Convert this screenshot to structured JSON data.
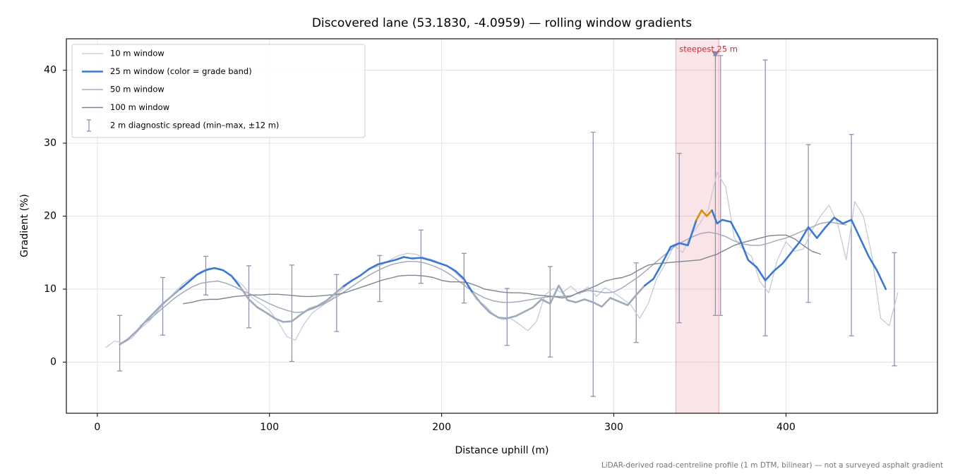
{
  "chart_data": {
    "type": "line",
    "title": "Discovered lane (53.1830, -4.0959) — rolling window gradients",
    "x_label": "Distance uphill (m)",
    "y_label": "Gradient (%)",
    "footnote": "LiDAR-derived road-centreline profile (1 m DTM, bilinear) — not a surveyed asphalt gradient",
    "xlim": [
      -18,
      488
    ],
    "ylim": [
      -7,
      44.3
    ],
    "xticks": [
      0,
      100,
      200,
      300,
      400
    ],
    "yticks": [
      0,
      10,
      20,
      30,
      40
    ],
    "grid": true,
    "legend": "upper left",
    "series": [
      {
        "name": "10 m window",
        "color": "#c5cad6",
        "width": 1.3,
        "x": [
          5,
          10,
          15,
          20,
          25,
          30,
          35,
          40,
          45,
          50,
          55,
          60,
          65,
          70,
          75,
          80,
          85,
          90,
          95,
          100,
          105,
          110,
          115,
          120,
          125,
          130,
          135,
          140,
          145,
          150,
          155,
          160,
          165,
          170,
          175,
          180,
          185,
          190,
          195,
          200,
          205,
          210,
          215,
          220,
          225,
          230,
          235,
          240,
          245,
          250,
          255,
          260,
          265,
          270,
          275,
          280,
          285,
          290,
          295,
          300,
          305,
          310,
          315,
          320,
          325,
          330,
          335,
          340,
          345,
          350,
          355,
          360,
          365,
          370,
          375,
          380,
          385,
          390,
          395,
          400,
          405,
          410,
          415,
          420,
          425,
          430,
          435,
          440,
          445,
          450,
          455,
          460,
          465
        ],
        "values": [
          2.0,
          2.9,
          2.6,
          3.3,
          4.6,
          5.6,
          7.0,
          8.3,
          9.6,
          10.8,
          11.6,
          12.4,
          12.9,
          12.7,
          12.4,
          11.4,
          10.4,
          8.8,
          8.0,
          7.1,
          5.5,
          3.5,
          3.0,
          5.2,
          6.8,
          7.6,
          8.5,
          9.4,
          10.6,
          11.4,
          12.3,
          12.9,
          13.3,
          14.0,
          14.6,
          14.9,
          14.8,
          14.3,
          14.0,
          13.5,
          12.9,
          11.8,
          10.7,
          8.6,
          7.8,
          6.6,
          5.8,
          6.0,
          5.2,
          4.3,
          5.5,
          9.2,
          10.1,
          9.5,
          10.4,
          9.3,
          10.3,
          9.0,
          10.2,
          9.5,
          8.7,
          7.8,
          6.0,
          8.0,
          11.5,
          13.5,
          16.0,
          15.0,
          17.5,
          19.0,
          21.0,
          26.0,
          24.0,
          17.0,
          15.5,
          14.5,
          11.0,
          9.5,
          14.0,
          16.5,
          15.2,
          15.5,
          18.0,
          20.0,
          21.5,
          19.0,
          14.0,
          22.0,
          20.0,
          14.5,
          6.0,
          5.0,
          9.5
        ]
      },
      {
        "name": "25 m window (color = grade band)",
        "color": "#3b78d4",
        "width": 2.6,
        "band_edges": [
          10,
          20
        ],
        "band_colors": [
          "#9eaabc",
          "#3b78d4",
          "#e08a0b"
        ],
        "x": [
          13,
          18,
          23,
          28,
          33,
          38,
          43,
          48,
          53,
          58,
          63,
          68,
          73,
          78,
          83,
          88,
          93,
          98,
          103,
          108,
          113,
          118,
          123,
          128,
          133,
          138,
          143,
          148,
          153,
          158,
          163,
          168,
          173,
          178,
          183,
          188,
          193,
          198,
          203,
          208,
          213,
          218,
          223,
          228,
          233,
          238,
          243,
          248,
          253,
          258,
          263,
          268,
          273,
          278,
          283,
          288,
          293,
          298,
          303,
          308,
          313,
          318,
          323,
          328,
          333,
          338,
          343,
          348,
          351,
          354,
          357,
          360,
          363,
          368,
          373,
          378,
          383,
          388,
          393,
          398,
          403,
          408,
          413,
          418,
          423,
          428,
          433,
          438,
          443,
          448,
          453,
          458
        ],
        "values": [
          2.4,
          3.2,
          4.3,
          5.6,
          6.8,
          8.0,
          9.0,
          10.0,
          11.0,
          12.0,
          12.6,
          12.9,
          12.6,
          11.8,
          10.3,
          8.6,
          7.5,
          6.8,
          6.0,
          5.5,
          5.6,
          6.5,
          7.3,
          7.7,
          8.4,
          9.4,
          10.4,
          11.2,
          11.9,
          12.8,
          13.4,
          13.7,
          14.0,
          14.4,
          14.2,
          14.3,
          14.0,
          13.6,
          13.2,
          12.5,
          11.4,
          9.5,
          8.0,
          6.8,
          6.1,
          6.0,
          6.3,
          6.9,
          7.5,
          8.6,
          8.0,
          10.5,
          8.5,
          8.2,
          8.6,
          8.2,
          7.6,
          8.8,
          8.3,
          7.8,
          9.2,
          10.5,
          11.4,
          13.5,
          15.8,
          16.3,
          16.0,
          19.5,
          20.8,
          20.0,
          20.8,
          19.0,
          19.5,
          19.2,
          17.0,
          14.0,
          13.0,
          11.2,
          12.5,
          13.5,
          15.0,
          16.5,
          18.5,
          17.0,
          18.5,
          19.8,
          19.0,
          19.5,
          17.0,
          14.5,
          12.5,
          10.0
        ]
      },
      {
        "name": "50 m window",
        "color": "#a3acbd",
        "width": 1.5,
        "x": [
          25,
          30,
          35,
          40,
          45,
          50,
          55,
          60,
          65,
          70,
          75,
          80,
          85,
          90,
          95,
          100,
          105,
          110,
          115,
          120,
          125,
          130,
          135,
          140,
          145,
          150,
          155,
          160,
          165,
          170,
          175,
          180,
          185,
          190,
          195,
          200,
          205,
          210,
          215,
          220,
          225,
          230,
          235,
          240,
          245,
          250,
          255,
          260,
          265,
          270,
          275,
          280,
          285,
          290,
          295,
          300,
          305,
          310,
          315,
          320,
          325,
          330,
          335,
          340,
          345,
          350,
          355,
          360,
          365,
          370,
          375,
          380,
          385,
          390,
          395,
          400,
          405,
          410,
          415,
          420,
          425,
          430,
          435
        ],
        "values": [
          5.0,
          5.8,
          6.8,
          7.8,
          8.8,
          9.6,
          10.3,
          10.8,
          11.0,
          11.1,
          10.8,
          10.3,
          9.7,
          9.2,
          8.6,
          8.0,
          7.5,
          7.1,
          6.8,
          6.9,
          7.3,
          7.8,
          8.4,
          9.1,
          9.9,
          10.7,
          11.5,
          12.2,
          12.8,
          13.3,
          13.6,
          13.8,
          13.8,
          13.6,
          13.2,
          12.7,
          12.0,
          11.1,
          10.2,
          9.4,
          8.8,
          8.4,
          8.2,
          8.2,
          8.3,
          8.5,
          8.7,
          8.9,
          9.0,
          9.0,
          9.1,
          9.5,
          9.8,
          9.7,
          9.5,
          9.6,
          10.2,
          11.0,
          11.8,
          12.8,
          13.8,
          14.8,
          15.8,
          16.5,
          17.1,
          17.6,
          17.8,
          17.6,
          17.2,
          16.6,
          16.2,
          16.0,
          16.0,
          16.3,
          16.7,
          17.0,
          17.5,
          18.0,
          18.5,
          19.0,
          19.2,
          19.0,
          18.8
        ]
      },
      {
        "name": "100 m window",
        "color": "#7d8594",
        "width": 1.4,
        "x": [
          50,
          55,
          60,
          65,
          70,
          75,
          80,
          85,
          90,
          95,
          100,
          105,
          110,
          115,
          120,
          125,
          130,
          135,
          140,
          145,
          150,
          155,
          160,
          165,
          170,
          175,
          180,
          185,
          190,
          195,
          200,
          205,
          210,
          215,
          220,
          225,
          230,
          235,
          240,
          245,
          250,
          255,
          260,
          265,
          270,
          275,
          280,
          285,
          290,
          295,
          300,
          305,
          310,
          315,
          320,
          325,
          330,
          335,
          340,
          345,
          350,
          355,
          360,
          365,
          370,
          375,
          380,
          385,
          390,
          395,
          400,
          405,
          410,
          415,
          420
        ],
        "values": [
          8.0,
          8.2,
          8.5,
          8.6,
          8.6,
          8.8,
          9.0,
          9.1,
          9.2,
          9.2,
          9.3,
          9.3,
          9.2,
          9.1,
          9.0,
          9.0,
          9.1,
          9.2,
          9.3,
          9.6,
          10.0,
          10.4,
          10.8,
          11.2,
          11.5,
          11.8,
          11.9,
          11.9,
          11.8,
          11.6,
          11.2,
          11.0,
          11.0,
          10.9,
          10.5,
          10.0,
          9.8,
          9.6,
          9.5,
          9.5,
          9.4,
          9.2,
          9.1,
          9.0,
          8.8,
          9.0,
          9.6,
          10.0,
          10.5,
          11.1,
          11.4,
          11.6,
          12.0,
          12.7,
          13.3,
          13.5,
          13.6,
          13.7,
          13.8,
          13.9,
          14.0,
          14.4,
          14.8,
          15.4,
          16.0,
          16.4,
          16.7,
          17.0,
          17.3,
          17.4,
          17.4,
          16.9,
          16.0,
          15.2,
          14.8
        ]
      }
    ],
    "errorbars": {
      "name": "2 m diagnostic spread (min–max, ±12 m)",
      "color": "#9590b0",
      "x": [
        13,
        38,
        63,
        88,
        113,
        139,
        164,
        188,
        213,
        238,
        263,
        288,
        313,
        338,
        359,
        362,
        388,
        413,
        438,
        463
      ],
      "low": [
        -1.2,
        3.7,
        9.2,
        4.7,
        0.1,
        4.2,
        8.3,
        10.8,
        8.1,
        2.3,
        0.7,
        -4.7,
        2.7,
        5.4,
        6.4,
        6.4,
        3.6,
        8.2,
        3.6,
        -0.5
      ],
      "high": [
        6.4,
        11.6,
        14.5,
        13.2,
        13.3,
        12.0,
        14.6,
        18.1,
        14.9,
        10.1,
        13.1,
        31.5,
        13.6,
        28.6,
        42.0,
        42.0,
        41.4,
        29.8,
        31.2,
        15.0
      ]
    },
    "highlight": {
      "label": "steepest 25 m",
      "span": [
        336,
        361
      ],
      "color": "#e07a85",
      "marker_x": 359,
      "marker_y": 42.1
    }
  }
}
